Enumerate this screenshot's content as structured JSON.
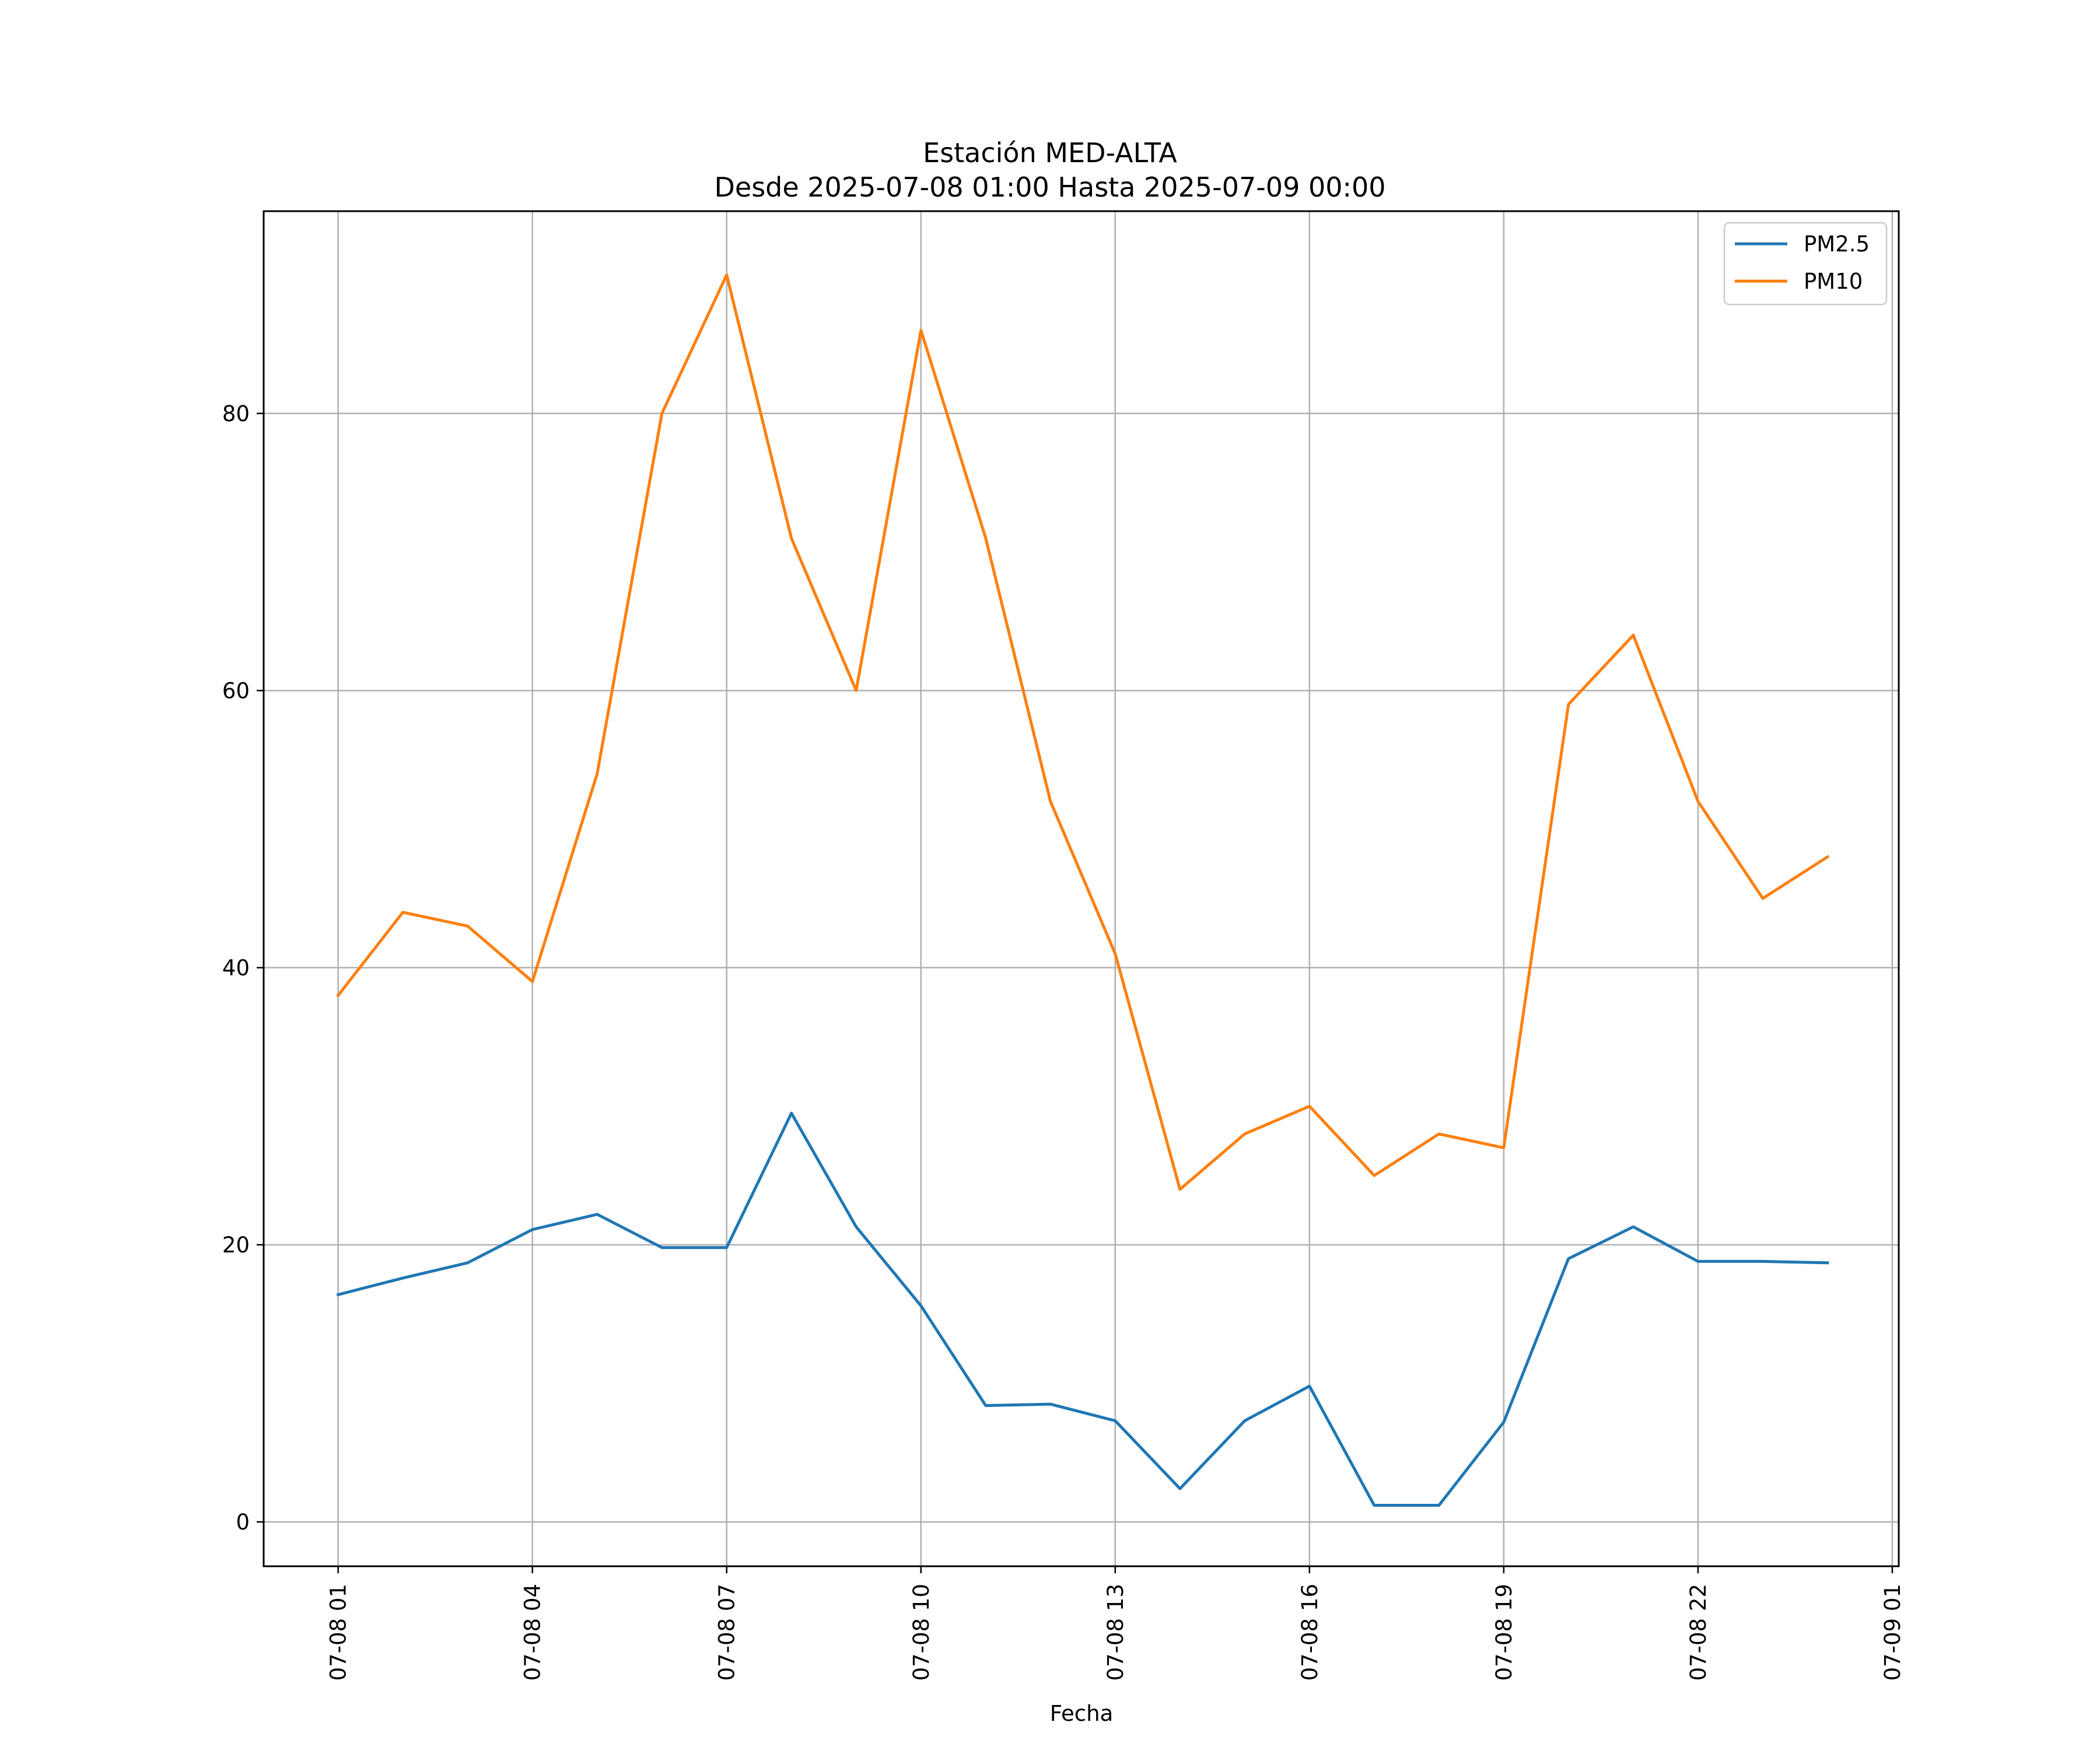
{
  "chart_data": {
    "type": "line",
    "title": "Estación MED-ALTA",
    "subtitle": "Desde 2025-07-08 01:00 Hasta 2025-07-09 00:00",
    "xlabel": "Fecha",
    "ylabel": "",
    "x": [
      "2025-07-08 01:00",
      "2025-07-08 02:00",
      "2025-07-08 03:00",
      "2025-07-08 04:00",
      "2025-07-08 05:00",
      "2025-07-08 06:00",
      "2025-07-08 07:00",
      "2025-07-08 08:00",
      "2025-07-08 09:00",
      "2025-07-08 10:00",
      "2025-07-08 11:00",
      "2025-07-08 12:00",
      "2025-07-08 13:00",
      "2025-07-08 14:00",
      "2025-07-08 15:00",
      "2025-07-08 16:00",
      "2025-07-08 17:00",
      "2025-07-08 18:00",
      "2025-07-08 19:00",
      "2025-07-08 20:00",
      "2025-07-08 21:00",
      "2025-07-08 22:00",
      "2025-07-08 23:00",
      "2025-07-09 00:00"
    ],
    "xlim": [
      "2025-07-07 23:51",
      "2025-07-09 01:06"
    ],
    "x_ticks": [
      {
        "label": "07-08 01",
        "value": "2025-07-08 01:00"
      },
      {
        "label": "07-08 04",
        "value": "2025-07-08 04:00"
      },
      {
        "label": "07-08 07",
        "value": "2025-07-08 07:00"
      },
      {
        "label": "07-08 10",
        "value": "2025-07-08 10:00"
      },
      {
        "label": "07-08 13",
        "value": "2025-07-08 13:00"
      },
      {
        "label": "07-08 16",
        "value": "2025-07-08 16:00"
      },
      {
        "label": "07-08 19",
        "value": "2025-07-08 19:00"
      },
      {
        "label": "07-08 22",
        "value": "2025-07-08 22:00"
      },
      {
        "label": "07-09 01",
        "value": "2025-07-09 01:00"
      }
    ],
    "ylim": [
      -3.2,
      94.6
    ],
    "y_ticks": [
      0,
      20,
      40,
      60,
      80
    ],
    "grid": true,
    "legend_position": "top-right",
    "series": [
      {
        "name": "PM2.5",
        "color": "#1f77b4",
        "values": [
          16.4,
          17.6,
          18.7,
          21.1,
          22.2,
          19.8,
          19.8,
          29.5,
          21.3,
          15.6,
          8.4,
          8.5,
          7.3,
          2.4,
          7.3,
          9.8,
          1.2,
          1.2,
          7.2,
          19.0,
          21.3,
          18.8,
          18.8,
          18.7
        ]
      },
      {
        "name": "PM10",
        "color": "#ff7f0e",
        "values": [
          38,
          44,
          43,
          39,
          54,
          80,
          90,
          71,
          60,
          86,
          71,
          52,
          41,
          24,
          28,
          30,
          25,
          28,
          27,
          59,
          64,
          52,
          45,
          48
        ]
      }
    ]
  }
}
